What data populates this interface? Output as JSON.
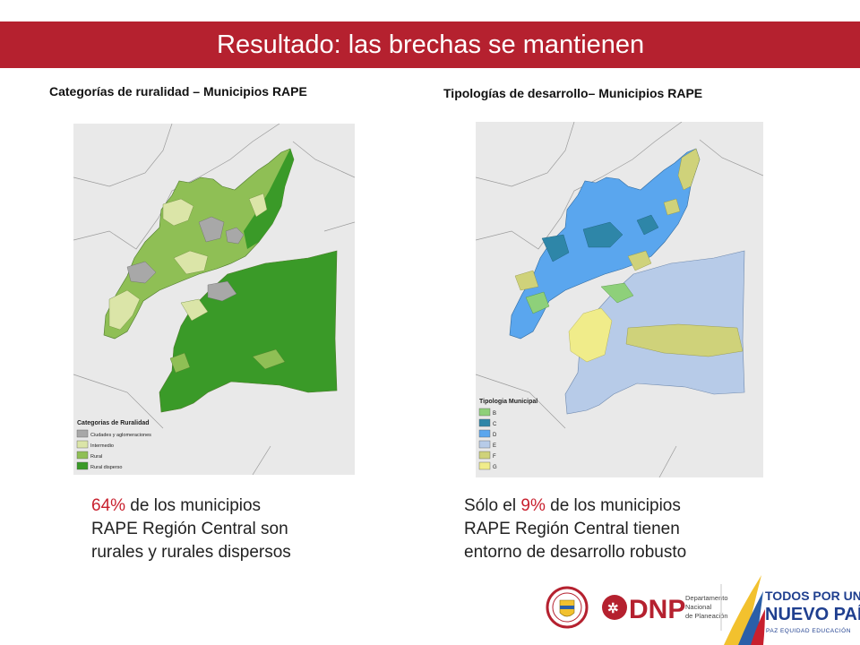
{
  "title": "Resultado: las brechas se mantienen",
  "left": {
    "subtitle": "Categorías de ruralidad – Municipios RAPE",
    "legend": {
      "title": "Categorias de Ruralidad",
      "items": [
        {
          "label": "Ciudades y aglomeraciones",
          "color": "#a8a8a8"
        },
        {
          "label": "Intermedio",
          "color": "#dbe5a8"
        },
        {
          "label": "Rural",
          "color": "#8fbf55"
        },
        {
          "label": "Rural disperso",
          "color": "#3a9a28"
        }
      ]
    },
    "caption": {
      "pct": "64%",
      "line1_rest": " de los municipios",
      "line2": "RAPE Región Central son",
      "line3": "rurales y rurales dispersos"
    }
  },
  "right": {
    "subtitle": "Tipologías de desarrollo– Municipios RAPE",
    "legend": {
      "title": "Tipologia Municipal",
      "items": [
        {
          "label": "B",
          "color": "#8ed07a"
        },
        {
          "label": "C",
          "color": "#2e86a8"
        },
        {
          "label": "D",
          "color": "#5aa6ee"
        },
        {
          "label": "E",
          "color": "#b7cbe8"
        },
        {
          "label": "F",
          "color": "#cfd27a"
        },
        {
          "label": "G",
          "color": "#f0ec8a"
        }
      ]
    },
    "caption": {
      "line1_pre": "Sólo el ",
      "pct": "9%",
      "line1_rest": " de los municipios",
      "line2": "RAPE Región Central tienen",
      "line3": "entorno de desarrollo robusto"
    }
  },
  "footer": {
    "dnp_text": "DNP",
    "dnp_sub1": "Departamento",
    "dnp_sub2": "Nacional",
    "dnp_sub3": "de Planeación",
    "tpu_line1": "TODOS POR UN",
    "tpu_line2": "NUEVO PAÍS",
    "tpu_line3": "PAZ  EQUIDAD  EDUCACIÓN"
  },
  "colors": {
    "accent": "#b5212f",
    "percent": "#c8202e"
  }
}
